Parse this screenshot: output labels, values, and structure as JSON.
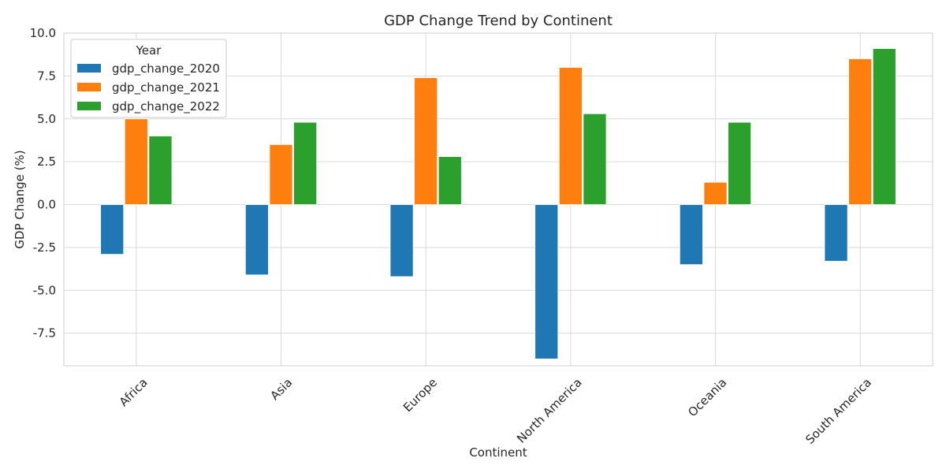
{
  "chart_data": {
    "type": "bar",
    "title": "GDP Change Trend by Continent",
    "xlabel": "Continent",
    "ylabel": "GDP Change (%)",
    "categories": [
      "Africa",
      "Asia",
      "Europe",
      "North America",
      "Oceania",
      "South America"
    ],
    "series": [
      {
        "name": "gdp_change_2020",
        "color": "#1f77b4",
        "values": [
          -2.9,
          -4.1,
          -4.2,
          -9.0,
          -3.5,
          -3.3
        ]
      },
      {
        "name": "gdp_change_2021",
        "color": "#ff7f0e",
        "values": [
          5.0,
          3.5,
          7.4,
          8.0,
          1.3,
          8.5
        ]
      },
      {
        "name": "gdp_change_2022",
        "color": "#2ca02c",
        "values": [
          4.0,
          4.8,
          2.8,
          5.3,
          4.8,
          9.1
        ]
      }
    ],
    "ylim": [
      -9.4,
      10.0
    ],
    "yticks": [
      10.0,
      7.5,
      5.0,
      2.5,
      0.0,
      -2.5,
      -5.0,
      -7.5
    ],
    "ytick_labels": [
      "10.0",
      "7.5",
      "5.0",
      "2.5",
      "0.0",
      "-2.5",
      "-5.0",
      "-7.5"
    ],
    "legend": {
      "title": "Year",
      "placement": "top-left"
    },
    "grid": true
  }
}
